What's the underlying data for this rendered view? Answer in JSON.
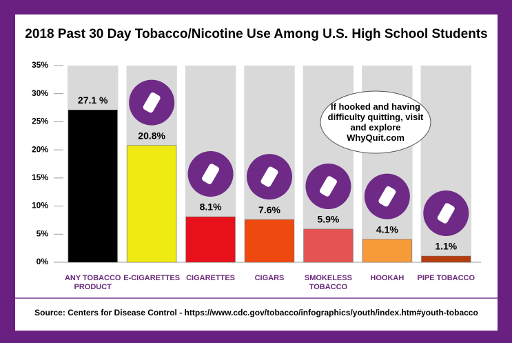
{
  "chart_data": {
    "type": "bar",
    "title": "2018 Past 30 Day Tobacco/Nicotine Use Among U.S. High School Students",
    "categories": [
      "ANY TOBACCO PRODUCT",
      "E-CIGARETTES",
      "CIGARETTES",
      "CIGARS",
      "SMOKELESS TOBACCO",
      "HOOKAH",
      "PIPE TOBACCO"
    ],
    "values": [
      27.1,
      20.8,
      8.1,
      7.6,
      5.9,
      4.1,
      1.1
    ],
    "value_labels": [
      "27.1 %",
      "20.8%",
      "8.1%",
      "7.6%",
      "5.9%",
      "4.1%",
      "1.1%"
    ],
    "colors": [
      "#000000",
      "#eeea12",
      "#e8101a",
      "#ee4a10",
      "#e55452",
      "#f79a3a",
      "#b63c10"
    ],
    "ylim": [
      0,
      35
    ],
    "yticks": [
      {
        "value": 0,
        "label": "0%"
      },
      {
        "value": 5,
        "label": "5%"
      },
      {
        "value": 10,
        "label": "10%"
      },
      {
        "value": 15,
        "label": "15%"
      },
      {
        "value": 20,
        "label": "20%"
      },
      {
        "value": 25,
        "label": "25%"
      },
      {
        "value": 30,
        "label": "30%"
      },
      {
        "value": 35,
        "label": "35%"
      }
    ],
    "annotation": "If hooked and having difficulty quitting, visit and explore WhyQuit.com",
    "source": "Source: Centers for Disease Control - https://www.cdc.gov/tobacco/infographics/youth/index.htm#youth-tobacco"
  }
}
